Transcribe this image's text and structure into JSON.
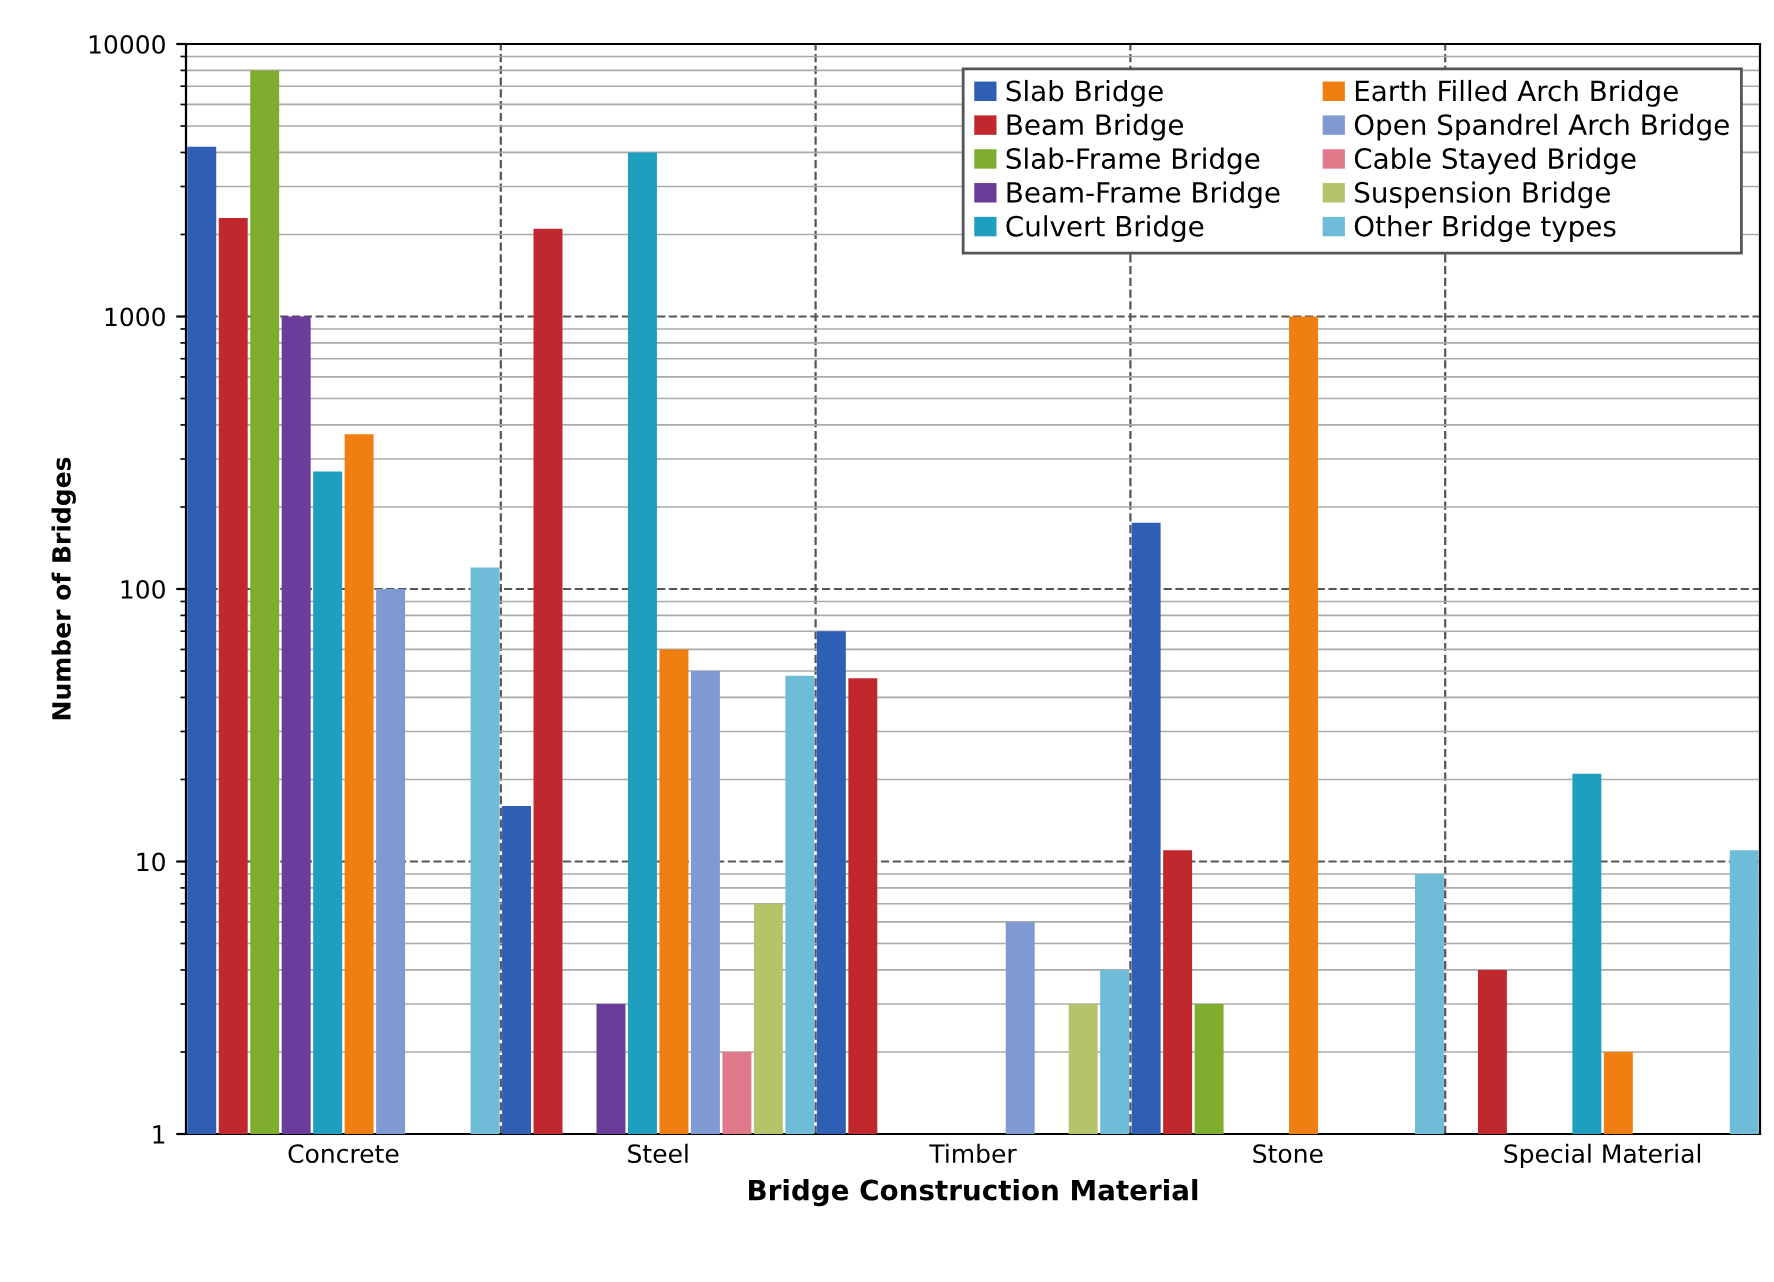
{
  "chart_data": {
    "type": "bar",
    "xlabel": "Bridge Construction Material",
    "ylabel": "Number of Bridges",
    "categories": [
      "Concrete",
      "Steel",
      "Timber",
      "Stone",
      "Special Material"
    ],
    "series": [
      {
        "name": "Slab Bridge",
        "color": "#2e5fb5",
        "values": [
          4200,
          16,
          70,
          175,
          null
        ]
      },
      {
        "name": "Beam Bridge",
        "color": "#c0282d",
        "values": [
          2300,
          2100,
          47,
          11,
          4
        ]
      },
      {
        "name": "Slab-Frame Bridge",
        "color": "#7fae2e",
        "values": [
          8000,
          null,
          null,
          3,
          null
        ]
      },
      {
        "name": "Beam-Frame Bridge",
        "color": "#6a3d9a",
        "values": [
          1000,
          3,
          null,
          null,
          null
        ]
      },
      {
        "name": "Culvert Bridge",
        "color": "#1e9fc0",
        "values": [
          270,
          4000,
          null,
          null,
          21
        ]
      },
      {
        "name": "Earth Filled Arch Bridge",
        "color": "#f07f12",
        "values": [
          370,
          60,
          null,
          1000,
          2
        ]
      },
      {
        "name": "Open Spandrel Arch Bridge",
        "color": "#7f9ad0",
        "values": [
          100,
          50,
          6,
          null,
          null
        ]
      },
      {
        "name": "Cable Stayed Bridge",
        "color": "#e07a8a",
        "values": [
          null,
          2,
          null,
          null,
          null
        ]
      },
      {
        "name": "Suspension Bridge",
        "color": "#b4c46a",
        "values": [
          null,
          7,
          3,
          null,
          null
        ]
      },
      {
        "name": "Other Bridge types",
        "color": "#6fbcd8",
        "values": [
          120,
          48,
          4,
          9,
          11
        ]
      }
    ],
    "log": "y",
    "ylim": [
      1,
      10000
    ],
    "yticks": [
      1,
      10,
      100,
      1000,
      10000
    ],
    "grid": true,
    "legend": "top right"
  }
}
